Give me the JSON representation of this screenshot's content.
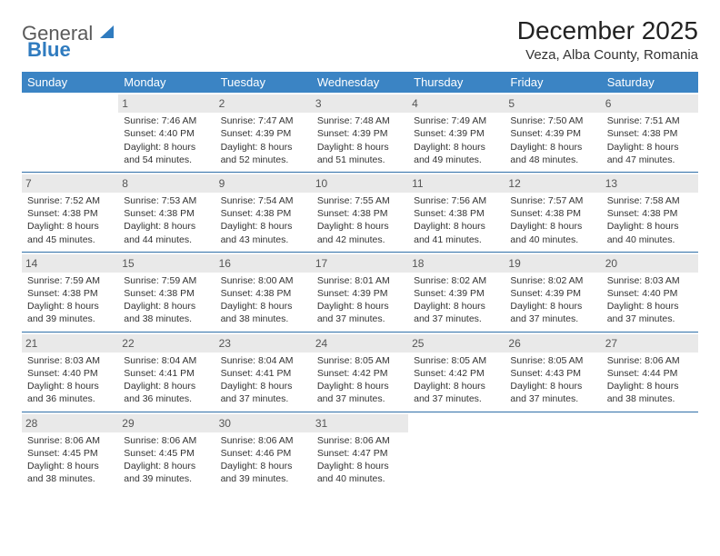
{
  "brand": {
    "text1": "General",
    "text2": "Blue"
  },
  "title": "December 2025",
  "location": "Veza, Alba County, Romania",
  "colors": {
    "header_bg": "#3b84c4",
    "header_fg": "#ffffff",
    "daynum_bg": "#e9e9e9",
    "rule": "#2f6fa8",
    "brand_blue": "#2f7bbf",
    "brand_gray": "#5a5a5a"
  },
  "day_headers": [
    "Sunday",
    "Monday",
    "Tuesday",
    "Wednesday",
    "Thursday",
    "Friday",
    "Saturday"
  ],
  "weeks": [
    [
      {
        "n": "",
        "sr": "",
        "ss": "",
        "dl": ""
      },
      {
        "n": "1",
        "sr": "Sunrise: 7:46 AM",
        "ss": "Sunset: 4:40 PM",
        "dl": "Daylight: 8 hours and 54 minutes."
      },
      {
        "n": "2",
        "sr": "Sunrise: 7:47 AM",
        "ss": "Sunset: 4:39 PM",
        "dl": "Daylight: 8 hours and 52 minutes."
      },
      {
        "n": "3",
        "sr": "Sunrise: 7:48 AM",
        "ss": "Sunset: 4:39 PM",
        "dl": "Daylight: 8 hours and 51 minutes."
      },
      {
        "n": "4",
        "sr": "Sunrise: 7:49 AM",
        "ss": "Sunset: 4:39 PM",
        "dl": "Daylight: 8 hours and 49 minutes."
      },
      {
        "n": "5",
        "sr": "Sunrise: 7:50 AM",
        "ss": "Sunset: 4:39 PM",
        "dl": "Daylight: 8 hours and 48 minutes."
      },
      {
        "n": "6",
        "sr": "Sunrise: 7:51 AM",
        "ss": "Sunset: 4:38 PM",
        "dl": "Daylight: 8 hours and 47 minutes."
      }
    ],
    [
      {
        "n": "7",
        "sr": "Sunrise: 7:52 AM",
        "ss": "Sunset: 4:38 PM",
        "dl": "Daylight: 8 hours and 45 minutes."
      },
      {
        "n": "8",
        "sr": "Sunrise: 7:53 AM",
        "ss": "Sunset: 4:38 PM",
        "dl": "Daylight: 8 hours and 44 minutes."
      },
      {
        "n": "9",
        "sr": "Sunrise: 7:54 AM",
        "ss": "Sunset: 4:38 PM",
        "dl": "Daylight: 8 hours and 43 minutes."
      },
      {
        "n": "10",
        "sr": "Sunrise: 7:55 AM",
        "ss": "Sunset: 4:38 PM",
        "dl": "Daylight: 8 hours and 42 minutes."
      },
      {
        "n": "11",
        "sr": "Sunrise: 7:56 AM",
        "ss": "Sunset: 4:38 PM",
        "dl": "Daylight: 8 hours and 41 minutes."
      },
      {
        "n": "12",
        "sr": "Sunrise: 7:57 AM",
        "ss": "Sunset: 4:38 PM",
        "dl": "Daylight: 8 hours and 40 minutes."
      },
      {
        "n": "13",
        "sr": "Sunrise: 7:58 AM",
        "ss": "Sunset: 4:38 PM",
        "dl": "Daylight: 8 hours and 40 minutes."
      }
    ],
    [
      {
        "n": "14",
        "sr": "Sunrise: 7:59 AM",
        "ss": "Sunset: 4:38 PM",
        "dl": "Daylight: 8 hours and 39 minutes."
      },
      {
        "n": "15",
        "sr": "Sunrise: 7:59 AM",
        "ss": "Sunset: 4:38 PM",
        "dl": "Daylight: 8 hours and 38 minutes."
      },
      {
        "n": "16",
        "sr": "Sunrise: 8:00 AM",
        "ss": "Sunset: 4:38 PM",
        "dl": "Daylight: 8 hours and 38 minutes."
      },
      {
        "n": "17",
        "sr": "Sunrise: 8:01 AM",
        "ss": "Sunset: 4:39 PM",
        "dl": "Daylight: 8 hours and 37 minutes."
      },
      {
        "n": "18",
        "sr": "Sunrise: 8:02 AM",
        "ss": "Sunset: 4:39 PM",
        "dl": "Daylight: 8 hours and 37 minutes."
      },
      {
        "n": "19",
        "sr": "Sunrise: 8:02 AM",
        "ss": "Sunset: 4:39 PM",
        "dl": "Daylight: 8 hours and 37 minutes."
      },
      {
        "n": "20",
        "sr": "Sunrise: 8:03 AM",
        "ss": "Sunset: 4:40 PM",
        "dl": "Daylight: 8 hours and 37 minutes."
      }
    ],
    [
      {
        "n": "21",
        "sr": "Sunrise: 8:03 AM",
        "ss": "Sunset: 4:40 PM",
        "dl": "Daylight: 8 hours and 36 minutes."
      },
      {
        "n": "22",
        "sr": "Sunrise: 8:04 AM",
        "ss": "Sunset: 4:41 PM",
        "dl": "Daylight: 8 hours and 36 minutes."
      },
      {
        "n": "23",
        "sr": "Sunrise: 8:04 AM",
        "ss": "Sunset: 4:41 PM",
        "dl": "Daylight: 8 hours and 37 minutes."
      },
      {
        "n": "24",
        "sr": "Sunrise: 8:05 AM",
        "ss": "Sunset: 4:42 PM",
        "dl": "Daylight: 8 hours and 37 minutes."
      },
      {
        "n": "25",
        "sr": "Sunrise: 8:05 AM",
        "ss": "Sunset: 4:42 PM",
        "dl": "Daylight: 8 hours and 37 minutes."
      },
      {
        "n": "26",
        "sr": "Sunrise: 8:05 AM",
        "ss": "Sunset: 4:43 PM",
        "dl": "Daylight: 8 hours and 37 minutes."
      },
      {
        "n": "27",
        "sr": "Sunrise: 8:06 AM",
        "ss": "Sunset: 4:44 PM",
        "dl": "Daylight: 8 hours and 38 minutes."
      }
    ],
    [
      {
        "n": "28",
        "sr": "Sunrise: 8:06 AM",
        "ss": "Sunset: 4:45 PM",
        "dl": "Daylight: 8 hours and 38 minutes."
      },
      {
        "n": "29",
        "sr": "Sunrise: 8:06 AM",
        "ss": "Sunset: 4:45 PM",
        "dl": "Daylight: 8 hours and 39 minutes."
      },
      {
        "n": "30",
        "sr": "Sunrise: 8:06 AM",
        "ss": "Sunset: 4:46 PM",
        "dl": "Daylight: 8 hours and 39 minutes."
      },
      {
        "n": "31",
        "sr": "Sunrise: 8:06 AM",
        "ss": "Sunset: 4:47 PM",
        "dl": "Daylight: 8 hours and 40 minutes."
      },
      {
        "n": "",
        "sr": "",
        "ss": "",
        "dl": ""
      },
      {
        "n": "",
        "sr": "",
        "ss": "",
        "dl": ""
      },
      {
        "n": "",
        "sr": "",
        "ss": "",
        "dl": ""
      }
    ]
  ]
}
